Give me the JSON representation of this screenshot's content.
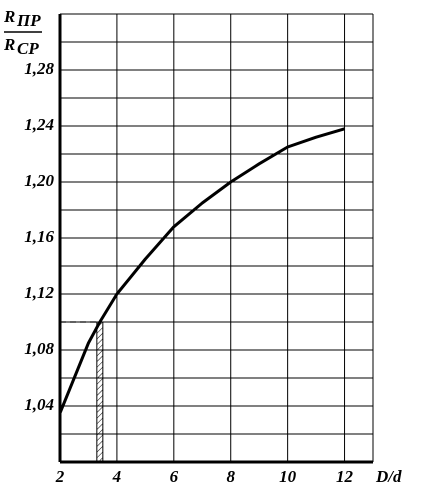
{
  "chart_data": {
    "type": "line",
    "ylabel": {
      "numerator": {
        "main": "R",
        "sub": "ПР"
      },
      "denominator": {
        "main": "R",
        "sub": "СР"
      }
    },
    "xlabel": "D/d",
    "x": [
      2,
      2.5,
      3,
      3.4,
      4,
      5,
      6,
      7,
      8,
      9,
      10,
      11,
      12
    ],
    "series": [
      {
        "color": "#000000",
        "values": [
          1.035,
          1.06,
          1.085,
          1.1,
          1.12,
          1.145,
          1.168,
          1.185,
          1.2,
          1.213,
          1.225,
          1.232,
          1.238
        ]
      }
    ],
    "xlim": [
      2,
      13
    ],
    "xticks": [
      2,
      4,
      6,
      8,
      10,
      12
    ],
    "ylim": [
      1.0,
      1.32
    ],
    "yticks": [
      {
        "value": 1.04,
        "label": "1,04"
      },
      {
        "value": 1.08,
        "label": "1,08"
      },
      {
        "value": 1.12,
        "label": "1,12"
      },
      {
        "value": 1.16,
        "label": "1,16"
      },
      {
        "value": 1.2,
        "label": "1,20"
      },
      {
        "value": 1.24,
        "label": "1,24"
      },
      {
        "value": 1.28,
        "label": "1,28"
      }
    ],
    "yminor": [
      1.02,
      1.06,
      1.1,
      1.14,
      1.18,
      1.22,
      1.26,
      1.3
    ],
    "grid": true,
    "reference": {
      "x": 3.4,
      "y": 1.1
    }
  }
}
